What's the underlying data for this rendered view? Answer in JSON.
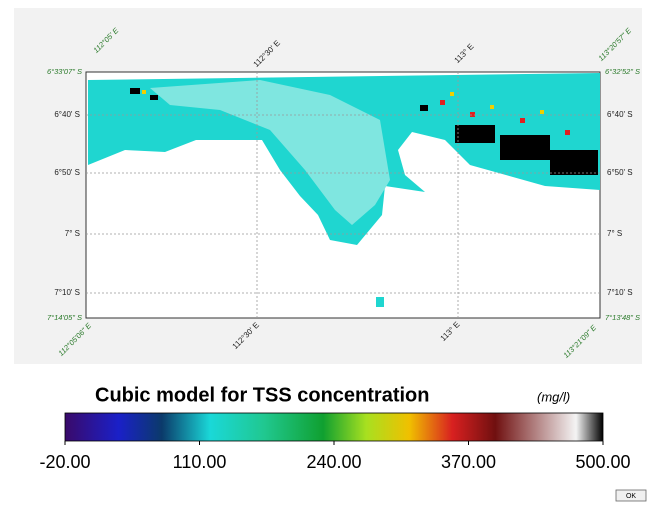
{
  "map": {
    "corner_labels": {
      "top_left_lon": "112°05' E",
      "top_left_lat": "6°33'07\" S",
      "top_right_lon": "113°20'57\" E",
      "top_right_lat": "6°32'52\" S",
      "bottom_left_lon": "112°05'06\" E",
      "bottom_left_lat": "7°14'05\" S",
      "bottom_right_lon": "113°21'09\" E",
      "bottom_right_lat": "7°13'48\" S"
    },
    "top_lon_labels": [
      "112°30' E",
      "113° E"
    ],
    "bottom_lon_labels": [
      "112°30' E",
      "113° E"
    ],
    "left_lat_labels": [
      "6°40' S",
      "6°50' S",
      "7° S",
      "7°10' S"
    ],
    "right_lat_labels": [
      "6°40' S",
      "6°50' S",
      "7° S",
      "7°10' S"
    ]
  },
  "colorbar": {
    "title": "Cubic model for TSS concentration",
    "unit": "(mg/l)",
    "range": [
      -20,
      500
    ],
    "ticks": [
      {
        "value": -20,
        "label": "-20.00"
      },
      {
        "value": 110,
        "label": "110.00"
      },
      {
        "value": 240,
        "label": "240.00"
      },
      {
        "value": 370,
        "label": "370.00"
      },
      {
        "value": 500,
        "label": "500.00"
      }
    ]
  },
  "button": "OK"
}
